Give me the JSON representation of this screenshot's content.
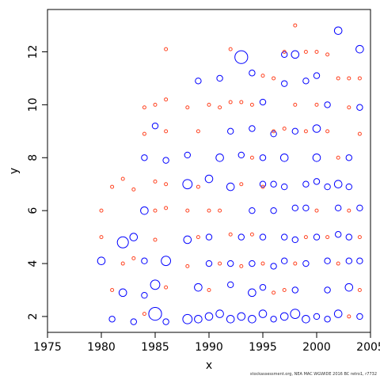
{
  "chart_data": {
    "type": "scatter",
    "title": "",
    "xlabel": "x",
    "ylabel": "y",
    "xlim": [
      1975,
      2005
    ],
    "ylim": [
      1.4,
      13.6
    ],
    "xticks": [
      1975,
      1980,
      1985,
      1990,
      1995,
      2000,
      2005
    ],
    "yticks": [
      2,
      4,
      6,
      8,
      10,
      12
    ],
    "grid": false,
    "legend": "none",
    "series": [
      {
        "color": "#0000ff",
        "marker": "open-circle",
        "points": [
          [
            1980,
            4.1,
            3
          ],
          [
            1981,
            1.9,
            2
          ],
          [
            1982,
            2.9,
            3
          ],
          [
            1982,
            4.8,
            5
          ],
          [
            1983,
            1.8,
            2
          ],
          [
            1983,
            5.0,
            3
          ],
          [
            1984,
            2.8,
            2
          ],
          [
            1984,
            4.1,
            2
          ],
          [
            1984,
            6.0,
            3
          ],
          [
            1984,
            8.0,
            2
          ],
          [
            1985,
            2.1,
            6
          ],
          [
            1985,
            3.2,
            4
          ],
          [
            1985,
            9.2,
            2
          ],
          [
            1986,
            1.8,
            2
          ],
          [
            1986,
            4.1,
            4
          ],
          [
            1986,
            7.9,
            2
          ],
          [
            1988,
            1.9,
            4
          ],
          [
            1988,
            4.9,
            3
          ],
          [
            1988,
            7.0,
            4
          ],
          [
            1988,
            8.1,
            2
          ],
          [
            1989,
            1.9,
            3
          ],
          [
            1989,
            3.1,
            3
          ],
          [
            1989,
            10.9,
            2
          ],
          [
            1990,
            2.0,
            3
          ],
          [
            1990,
            4.0,
            2
          ],
          [
            1990,
            5.0,
            2
          ],
          [
            1990,
            7.2,
            3
          ],
          [
            1991,
            2.1,
            3
          ],
          [
            1991,
            8.0,
            3
          ],
          [
            1991,
            11.0,
            2
          ],
          [
            1992,
            1.9,
            3
          ],
          [
            1992,
            3.2,
            2
          ],
          [
            1992,
            4.0,
            2
          ],
          [
            1992,
            6.9,
            3
          ],
          [
            1992,
            9.0,
            2
          ],
          [
            1993,
            2.0,
            3
          ],
          [
            1993,
            5.0,
            2
          ],
          [
            1993,
            8.1,
            2
          ],
          [
            1993,
            11.8,
            6
          ],
          [
            1994,
            1.9,
            3
          ],
          [
            1994,
            2.9,
            3
          ],
          [
            1994,
            4.0,
            2
          ],
          [
            1994,
            6.0,
            2
          ],
          [
            1994,
            9.1,
            2
          ],
          [
            1994,
            11.2,
            2
          ],
          [
            1995,
            2.1,
            3
          ],
          [
            1995,
            3.1,
            2
          ],
          [
            1995,
            5.0,
            2
          ],
          [
            1995,
            7.0,
            2
          ],
          [
            1995,
            8.0,
            2
          ],
          [
            1995,
            10.1,
            2
          ],
          [
            1996,
            1.9,
            2
          ],
          [
            1996,
            3.9,
            2
          ],
          [
            1996,
            6.0,
            2
          ],
          [
            1996,
            7.0,
            2
          ],
          [
            1996,
            8.9,
            2
          ],
          [
            1997,
            2.0,
            3
          ],
          [
            1997,
            4.1,
            2
          ],
          [
            1997,
            5.0,
            2
          ],
          [
            1997,
            6.9,
            2
          ],
          [
            1997,
            8.0,
            3
          ],
          [
            1997,
            10.8,
            2
          ],
          [
            1997,
            11.9,
            2
          ],
          [
            1998,
            2.1,
            4
          ],
          [
            1998,
            3.0,
            2
          ],
          [
            1998,
            4.9,
            2
          ],
          [
            1998,
            6.1,
            2
          ],
          [
            1998,
            9.0,
            2
          ],
          [
            1998,
            11.9,
            3
          ],
          [
            1999,
            1.9,
            3
          ],
          [
            1999,
            4.0,
            2
          ],
          [
            1999,
            6.1,
            2
          ],
          [
            1999,
            7.0,
            2
          ],
          [
            1999,
            10.9,
            2
          ],
          [
            2000,
            2.0,
            2
          ],
          [
            2000,
            5.0,
            2
          ],
          [
            2000,
            7.1,
            2
          ],
          [
            2000,
            8.0,
            3
          ],
          [
            2000,
            9.1,
            3
          ],
          [
            2000,
            11.1,
            2
          ],
          [
            2001,
            1.9,
            2
          ],
          [
            2001,
            3.0,
            2
          ],
          [
            2001,
            4.1,
            2
          ],
          [
            2001,
            6.9,
            2
          ],
          [
            2001,
            10.0,
            2
          ],
          [
            2002,
            2.1,
            3
          ],
          [
            2002,
            5.1,
            2
          ],
          [
            2002,
            6.1,
            2
          ],
          [
            2002,
            7.0,
            3
          ],
          [
            2002,
            12.8,
            3
          ],
          [
            2003,
            3.1,
            3
          ],
          [
            2003,
            4.1,
            2
          ],
          [
            2003,
            5.0,
            2
          ],
          [
            2003,
            6.9,
            2
          ],
          [
            2003,
            8.0,
            2
          ],
          [
            2004,
            2.0,
            2
          ],
          [
            2004,
            4.1,
            2
          ],
          [
            2004,
            6.1,
            2
          ],
          [
            2004,
            12.1,
            3
          ],
          [
            2004,
            9.9,
            2
          ]
        ]
      },
      {
        "color": "#ff4422",
        "marker": "open-circle",
        "points": [
          [
            1980,
            6.0,
            1
          ],
          [
            1980,
            5.0,
            1
          ],
          [
            1981,
            3.0,
            1
          ],
          [
            1981,
            6.9,
            1
          ],
          [
            1982,
            7.2,
            1
          ],
          [
            1982,
            4.0,
            1
          ],
          [
            1983,
            4.2,
            1
          ],
          [
            1983,
            6.8,
            1
          ],
          [
            1984,
            9.9,
            1
          ],
          [
            1984,
            8.9,
            1
          ],
          [
            1984,
            2.1,
            1
          ],
          [
            1985,
            10.0,
            1
          ],
          [
            1985,
            6.0,
            1
          ],
          [
            1985,
            4.9,
            1
          ],
          [
            1985,
            7.1,
            1
          ],
          [
            1986,
            12.1,
            1
          ],
          [
            1986,
            10.2,
            1
          ],
          [
            1986,
            9.0,
            1
          ],
          [
            1986,
            6.1,
            1
          ],
          [
            1986,
            3.1,
            1
          ],
          [
            1986,
            7.0,
            1
          ],
          [
            1988,
            9.9,
            1
          ],
          [
            1988,
            6.0,
            1
          ],
          [
            1988,
            3.9,
            1
          ],
          [
            1989,
            9.0,
            1
          ],
          [
            1989,
            6.9,
            1
          ],
          [
            1989,
            5.0,
            1
          ],
          [
            1990,
            10.0,
            1
          ],
          [
            1990,
            6.0,
            1
          ],
          [
            1990,
            3.0,
            1
          ],
          [
            1991,
            9.9,
            1
          ],
          [
            1991,
            6.0,
            1
          ],
          [
            1991,
            4.0,
            1
          ],
          [
            1992,
            12.1,
            1
          ],
          [
            1992,
            10.1,
            1
          ],
          [
            1992,
            5.1,
            1
          ],
          [
            1993,
            10.1,
            1
          ],
          [
            1993,
            7.0,
            1
          ],
          [
            1993,
            3.9,
            1
          ],
          [
            1994,
            10.0,
            1
          ],
          [
            1994,
            8.0,
            1
          ],
          [
            1994,
            5.1,
            1
          ],
          [
            1995,
            11.1,
            1
          ],
          [
            1995,
            6.9,
            1
          ],
          [
            1995,
            4.0,
            1
          ],
          [
            1996,
            11.0,
            1
          ],
          [
            1996,
            9.0,
            1
          ],
          [
            1996,
            2.9,
            1
          ],
          [
            1997,
            12.0,
            1
          ],
          [
            1997,
            9.1,
            1
          ],
          [
            1997,
            3.0,
            1
          ],
          [
            1998,
            13.0,
            1
          ],
          [
            1998,
            10.0,
            1
          ],
          [
            1998,
            4.0,
            1
          ],
          [
            1999,
            12.0,
            1
          ],
          [
            1999,
            9.0,
            1
          ],
          [
            1999,
            5.0,
            1
          ],
          [
            2000,
            12.0,
            1
          ],
          [
            2000,
            10.0,
            1
          ],
          [
            2000,
            6.0,
            1
          ],
          [
            2001,
            11.9,
            1
          ],
          [
            2001,
            9.0,
            1
          ],
          [
            2001,
            5.0,
            1
          ],
          [
            2002,
            11.0,
            1
          ],
          [
            2002,
            8.0,
            1
          ],
          [
            2002,
            4.0,
            1
          ],
          [
            2003,
            11.0,
            1
          ],
          [
            2003,
            9.9,
            1
          ],
          [
            2003,
            6.0,
            1
          ],
          [
            2003,
            2.0,
            1
          ],
          [
            2004,
            11.0,
            1
          ],
          [
            2004,
            8.9,
            1
          ],
          [
            2004,
            5.0,
            1
          ],
          [
            2004,
            3.0,
            1
          ]
        ]
      }
    ]
  },
  "caption": "stockassessment.org, NEA MAC WGWIDE 2016 BC retro1, r7732"
}
